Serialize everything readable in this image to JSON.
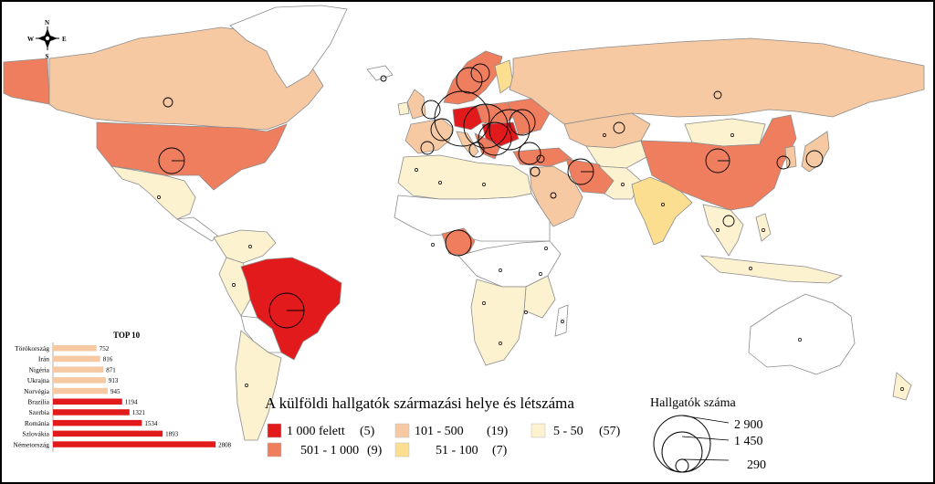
{
  "compass": {
    "n": "N",
    "s": "S",
    "e": "E",
    "w": "W"
  },
  "title": "A külföldi hallgatók származási helye és létszáma",
  "colors": {
    "c1": "#e31a1c",
    "c2": "#ef7e5e",
    "c3": "#f6c9a3",
    "c4": "#fbde90",
    "c5": "#fdf2d0",
    "other": "#ffffff",
    "sea": "#ffffff",
    "border": "#8c8c8c"
  },
  "legend_classes": [
    {
      "label": "1 000 felett",
      "count": "(5)",
      "color": "#e31a1c"
    },
    {
      "label": "501 - 1 000",
      "count": "(9)",
      "color": "#ef7e5e"
    },
    {
      "label": "101 - 500",
      "count": "(19)",
      "color": "#f6c9a3"
    },
    {
      "label": "51 - 100",
      "count": "(7)",
      "color": "#fbde90"
    },
    {
      "label": "5 - 50",
      "count": "(57)",
      "color": "#fdf2d0"
    }
  ],
  "size_legend": {
    "title": "Hallgatók száma",
    "values": [
      "2 900",
      "1 450",
      "290"
    ]
  },
  "chart_data": {
    "type": "bar",
    "orientation": "horizontal",
    "title": "TOP 10",
    "categories": [
      "Törökország",
      "Irán",
      "Nigéria",
      "Ukrajna",
      "Norvégia",
      "Brazília",
      "Szerbia",
      "Románia",
      "Szlovákia",
      "Németország"
    ],
    "values": [
      752,
      816,
      871,
      913,
      945,
      1194,
      1321,
      1534,
      1893,
      2808
    ],
    "value_labels": [
      "752",
      "816",
      "871",
      "913",
      "945",
      "1194",
      "1321",
      "1534",
      "1893",
      "2808"
    ],
    "colors": [
      "#f6c9a3",
      "#f6c9a3",
      "#f6c9a3",
      "#f6c9a3",
      "#f6c9a3",
      "#e31a1c",
      "#e31a1c",
      "#e31a1c",
      "#e31a1c",
      "#e31a1c"
    ],
    "xlim": [
      0,
      2900
    ]
  }
}
